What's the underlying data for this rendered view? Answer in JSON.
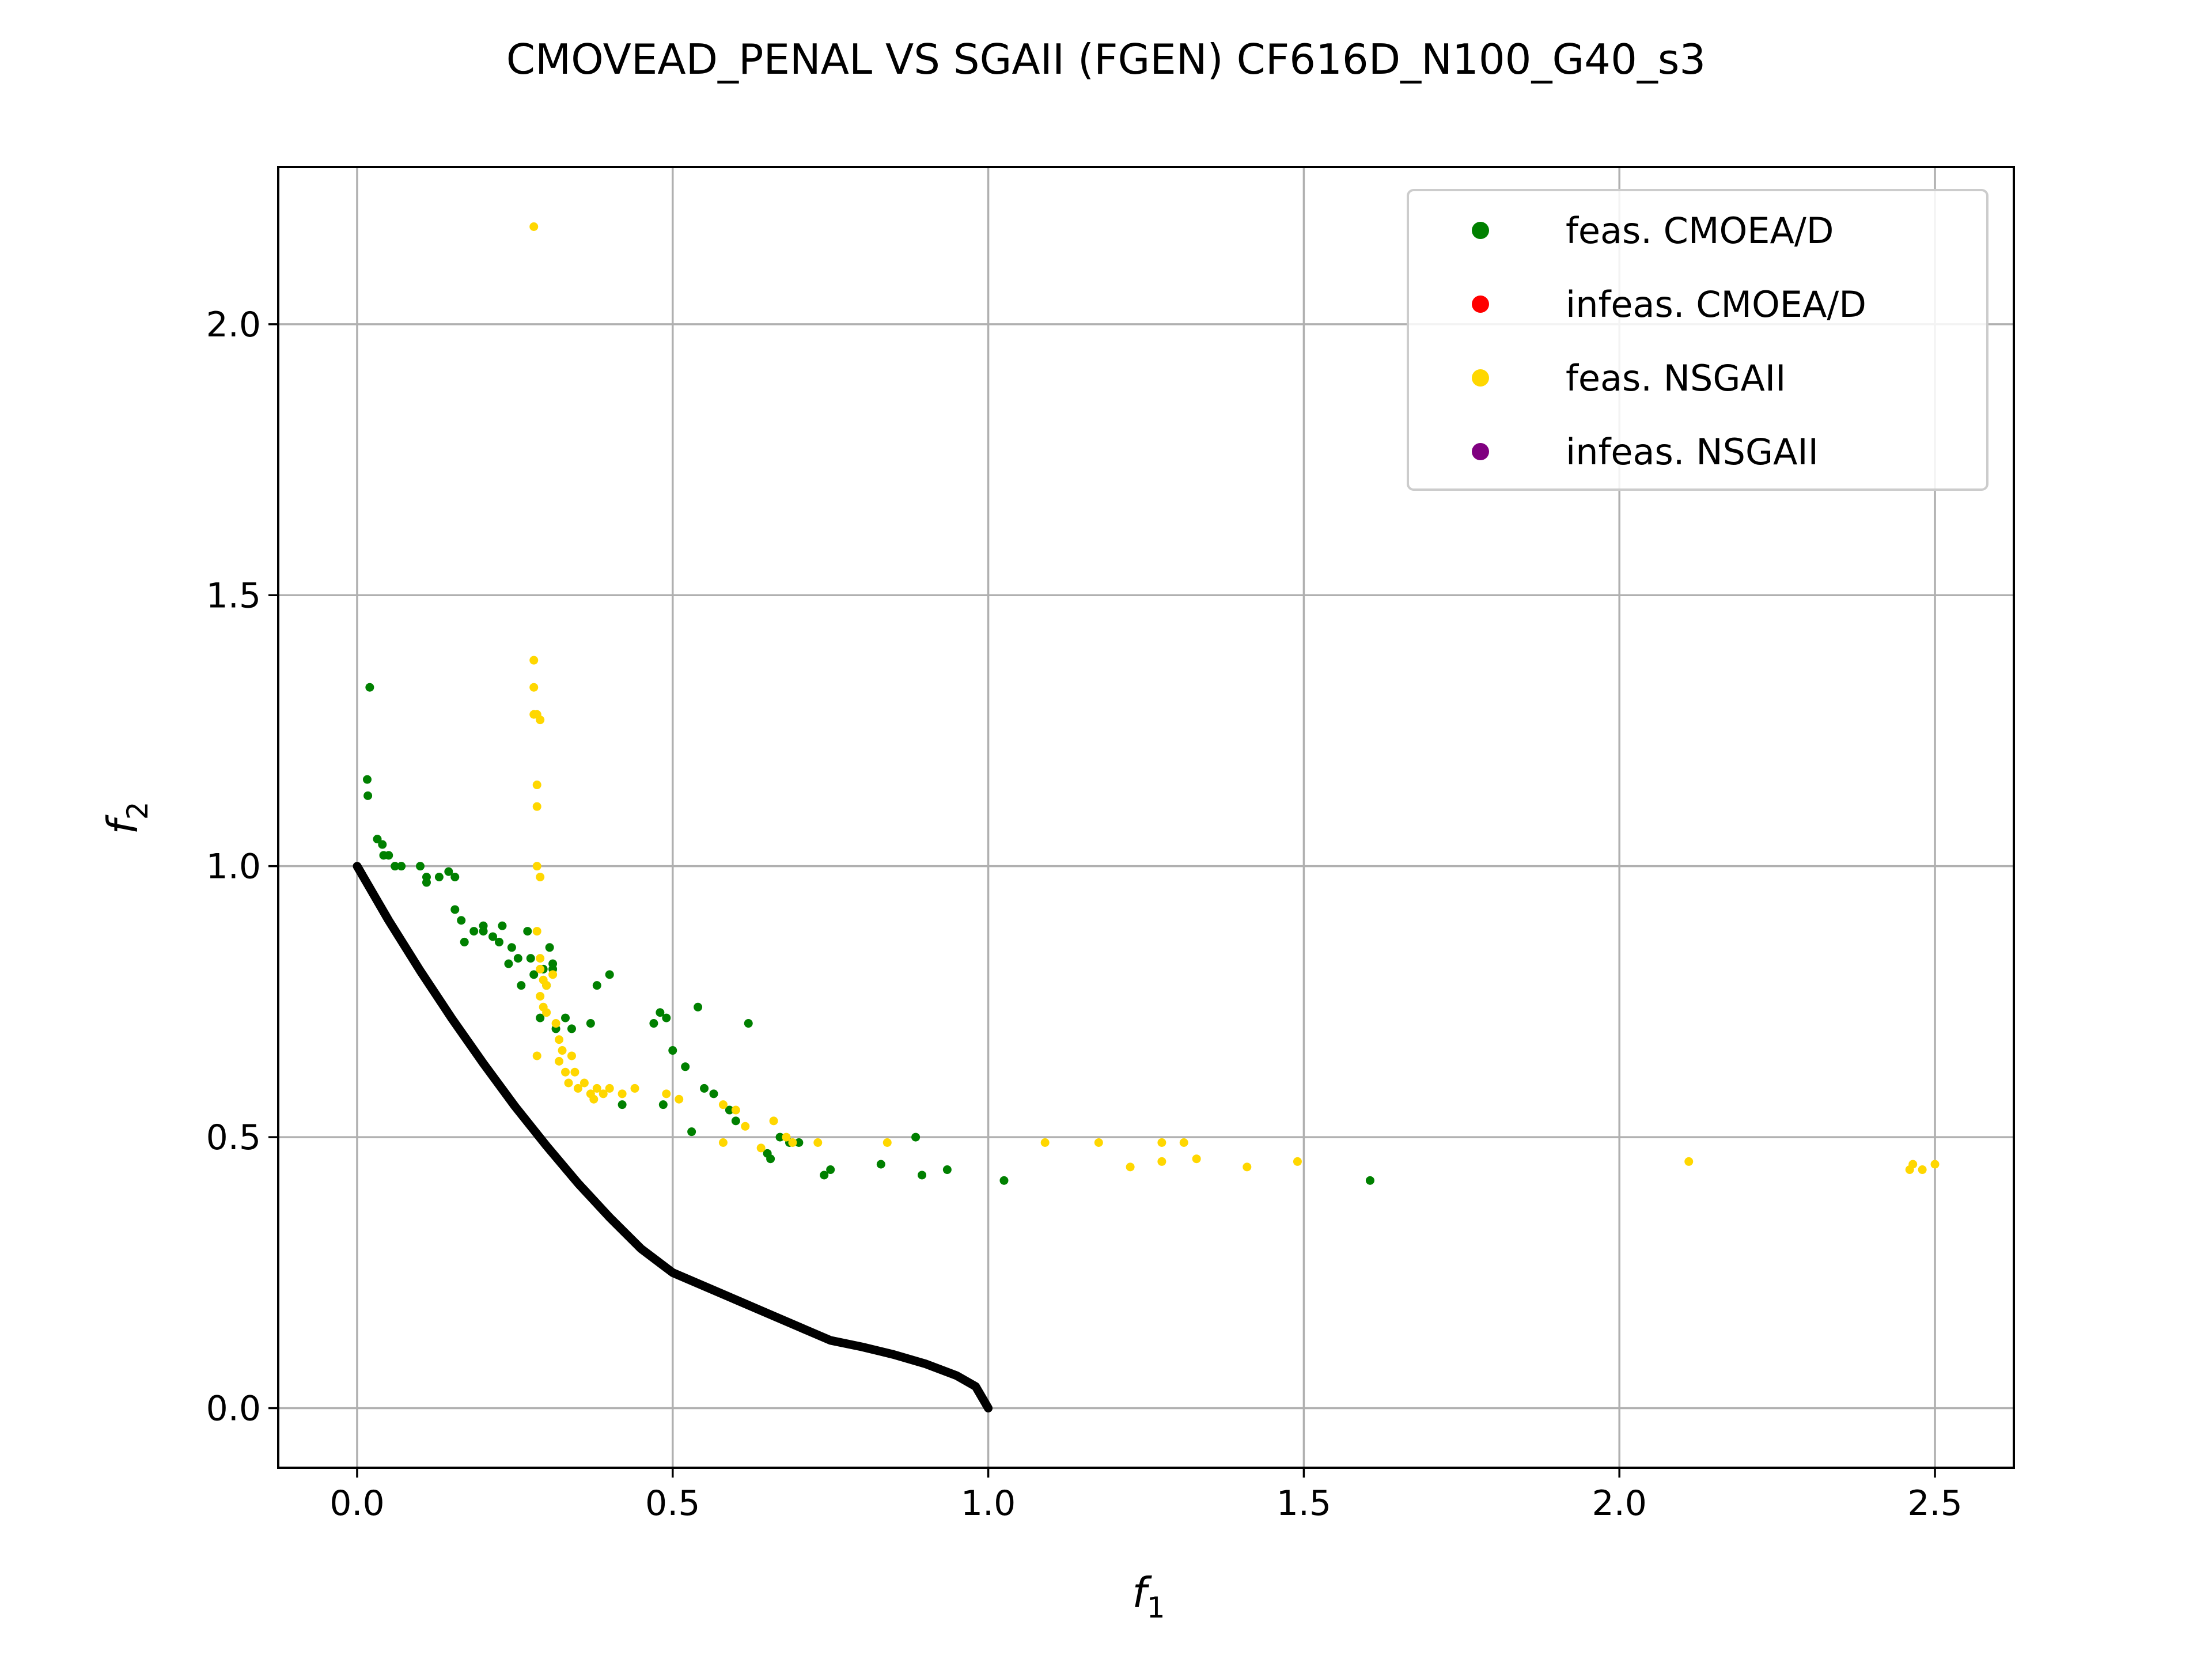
{
  "chart_data": {
    "type": "scatter",
    "title": "CMOVEAD_PENAL VS SGAII (FGEN) CF616D_N100_G40_s3",
    "xlabel": "f",
    "xlabel_sub": "1",
    "ylabel": "f",
    "ylabel_sub": "2",
    "xlim": [
      -0.125,
      2.625
    ],
    "ylim": [
      -0.11,
      2.29
    ],
    "x_ticks": [
      0.0,
      0.5,
      1.0,
      1.5,
      2.0,
      2.5
    ],
    "x_tick_labels": [
      "0.0",
      "0.5",
      "1.0",
      "1.5",
      "2.0",
      "2.5"
    ],
    "y_ticks": [
      0.0,
      0.5,
      1.0,
      1.5,
      2.0
    ],
    "y_tick_labels": [
      "0.0",
      "0.5",
      "1.0",
      "1.5",
      "2.0"
    ],
    "grid": true,
    "legend_position": "top-right",
    "series": [
      {
        "name": "feas. CMOEA/D",
        "color": "#008000",
        "marker": "dot",
        "points": [
          [
            0.02,
            1.33
          ],
          [
            0.016,
            1.16
          ],
          [
            0.017,
            1.13
          ],
          [
            0.032,
            1.05
          ],
          [
            0.04,
            1.04
          ],
          [
            0.042,
            1.02
          ],
          [
            0.05,
            1.02
          ],
          [
            0.06,
            1.0
          ],
          [
            0.07,
            1.0
          ],
          [
            0.1,
            1.0
          ],
          [
            0.11,
            0.98
          ],
          [
            0.11,
            0.97
          ],
          [
            0.13,
            0.98
          ],
          [
            0.145,
            0.99
          ],
          [
            0.155,
            0.98
          ],
          [
            0.155,
            0.92
          ],
          [
            0.165,
            0.9
          ],
          [
            0.17,
            0.86
          ],
          [
            0.185,
            0.88
          ],
          [
            0.2,
            0.88
          ],
          [
            0.2,
            0.89
          ],
          [
            0.215,
            0.87
          ],
          [
            0.225,
            0.86
          ],
          [
            0.23,
            0.89
          ],
          [
            0.24,
            0.82
          ],
          [
            0.245,
            0.85
          ],
          [
            0.255,
            0.83
          ],
          [
            0.26,
            0.78
          ],
          [
            0.27,
            0.88
          ],
          [
            0.275,
            0.83
          ],
          [
            0.28,
            0.8
          ],
          [
            0.29,
            0.72
          ],
          [
            0.295,
            0.81
          ],
          [
            0.3,
            0.78
          ],
          [
            0.305,
            0.85
          ],
          [
            0.31,
            0.81
          ],
          [
            0.31,
            0.82
          ],
          [
            0.315,
            0.7
          ],
          [
            0.33,
            0.72
          ],
          [
            0.34,
            0.7
          ],
          [
            0.37,
            0.71
          ],
          [
            0.38,
            0.78
          ],
          [
            0.4,
            0.8
          ],
          [
            0.42,
            0.56
          ],
          [
            0.47,
            0.71
          ],
          [
            0.48,
            0.73
          ],
          [
            0.485,
            0.56
          ],
          [
            0.49,
            0.72
          ],
          [
            0.5,
            0.66
          ],
          [
            0.52,
            0.63
          ],
          [
            0.53,
            0.51
          ],
          [
            0.54,
            0.74
          ],
          [
            0.55,
            0.59
          ],
          [
            0.565,
            0.58
          ],
          [
            0.59,
            0.55
          ],
          [
            0.6,
            0.53
          ],
          [
            0.62,
            0.71
          ],
          [
            0.65,
            0.47
          ],
          [
            0.655,
            0.46
          ],
          [
            0.67,
            0.5
          ],
          [
            0.685,
            0.49
          ],
          [
            0.7,
            0.49
          ],
          [
            0.74,
            0.43
          ],
          [
            0.75,
            0.44
          ],
          [
            0.83,
            0.45
          ],
          [
            0.885,
            0.5
          ],
          [
            0.895,
            0.43
          ],
          [
            0.935,
            0.44
          ],
          [
            1.025,
            0.42
          ],
          [
            1.605,
            0.42
          ]
        ]
      },
      {
        "name": "infeas. CMOEA/D",
        "color": "#ff0000",
        "marker": "dot",
        "points": []
      },
      {
        "name": "feas. NSGAII",
        "color": "#ffd700",
        "marker": "dot",
        "points": [
          [
            0.28,
            2.18
          ],
          [
            0.28,
            1.38
          ],
          [
            0.28,
            1.33
          ],
          [
            0.28,
            1.28
          ],
          [
            0.285,
            1.28
          ],
          [
            0.29,
            1.27
          ],
          [
            0.285,
            1.15
          ],
          [
            0.285,
            1.11
          ],
          [
            0.285,
            1.0
          ],
          [
            0.29,
            0.98
          ],
          [
            0.285,
            0.88
          ],
          [
            0.29,
            0.83
          ],
          [
            0.29,
            0.81
          ],
          [
            0.295,
            0.79
          ],
          [
            0.29,
            0.76
          ],
          [
            0.295,
            0.74
          ],
          [
            0.3,
            0.78
          ],
          [
            0.3,
            0.73
          ],
          [
            0.285,
            0.65
          ],
          [
            0.31,
            0.8
          ],
          [
            0.315,
            0.71
          ],
          [
            0.32,
            0.68
          ],
          [
            0.32,
            0.64
          ],
          [
            0.325,
            0.66
          ],
          [
            0.33,
            0.62
          ],
          [
            0.335,
            0.6
          ],
          [
            0.34,
            0.65
          ],
          [
            0.345,
            0.62
          ],
          [
            0.35,
            0.59
          ],
          [
            0.36,
            0.6
          ],
          [
            0.37,
            0.58
          ],
          [
            0.375,
            0.57
          ],
          [
            0.38,
            0.59
          ],
          [
            0.39,
            0.58
          ],
          [
            0.4,
            0.59
          ],
          [
            0.42,
            0.58
          ],
          [
            0.44,
            0.59
          ],
          [
            0.49,
            0.58
          ],
          [
            0.51,
            0.57
          ],
          [
            0.58,
            0.56
          ],
          [
            0.6,
            0.55
          ],
          [
            0.615,
            0.52
          ],
          [
            0.64,
            0.48
          ],
          [
            0.66,
            0.53
          ],
          [
            0.68,
            0.5
          ],
          [
            0.69,
            0.49
          ],
          [
            0.73,
            0.49
          ],
          [
            0.58,
            0.49
          ],
          [
            0.84,
            0.49
          ],
          [
            1.09,
            0.49
          ],
          [
            1.175,
            0.49
          ],
          [
            1.225,
            0.445
          ],
          [
            1.275,
            0.455
          ],
          [
            1.275,
            0.49
          ],
          [
            1.31,
            0.49
          ],
          [
            1.33,
            0.46
          ],
          [
            1.41,
            0.445
          ],
          [
            1.49,
            0.455
          ],
          [
            2.11,
            0.455
          ],
          [
            2.46,
            0.44
          ],
          [
            2.465,
            0.45
          ],
          [
            2.48,
            0.44
          ],
          [
            2.5,
            0.45
          ]
        ]
      },
      {
        "name": "infeas. NSGAII",
        "color": "#800080",
        "marker": "dot",
        "points": []
      }
    ],
    "reference_front": {
      "color": "#000000",
      "points": [
        [
          0.0,
          1.0
        ],
        [
          0.05,
          0.9
        ],
        [
          0.1,
          0.807
        ],
        [
          0.15,
          0.719
        ],
        [
          0.2,
          0.636
        ],
        [
          0.25,
          0.557
        ],
        [
          0.3,
          0.484
        ],
        [
          0.35,
          0.415
        ],
        [
          0.4,
          0.352
        ],
        [
          0.45,
          0.294
        ],
        [
          0.5,
          0.25
        ],
        [
          0.55,
          0.225
        ],
        [
          0.6,
          0.2
        ],
        [
          0.65,
          0.175
        ],
        [
          0.7,
          0.15
        ],
        [
          0.75,
          0.125
        ],
        [
          0.8,
          0.113
        ],
        [
          0.85,
          0.099
        ],
        [
          0.9,
          0.082
        ],
        [
          0.95,
          0.06
        ],
        [
          0.98,
          0.04
        ],
        [
          1.0,
          0.0
        ]
      ]
    }
  }
}
